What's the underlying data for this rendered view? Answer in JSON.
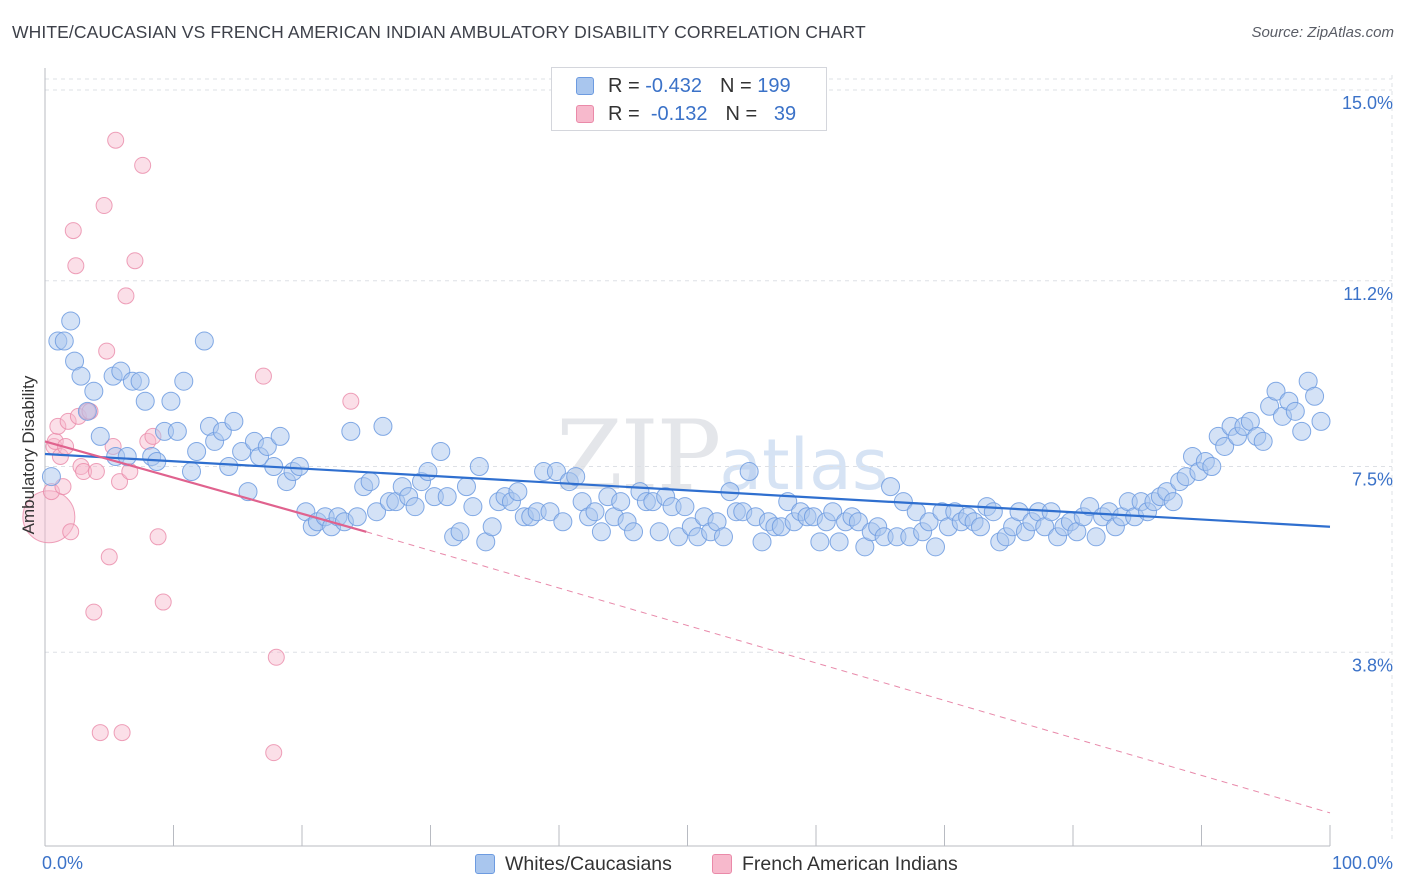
{
  "header": {
    "title": "WHITE/CAUCASIAN VS FRENCH AMERICAN INDIAN AMBULATORY DISABILITY CORRELATION CHART",
    "source": "Source: ZipAtlas.com"
  },
  "watermark": {
    "zip": "ZIP",
    "atlas": "atlas"
  },
  "legend": {
    "rows": [
      {
        "r_label": "R =",
        "r_value": "-0.432",
        "n_label": "N =",
        "n_value": "199"
      },
      {
        "r_label": "R =",
        "r_value": "-0.132",
        "n_label": "N =",
        "n_value": " 39"
      }
    ]
  },
  "colors": {
    "blue_fill": "#a9c6ee",
    "blue_stroke": "#6d9be0",
    "blue_line": "#2f6fcf",
    "pink_fill": "#f7b9cc",
    "pink_stroke": "#ea8aa9",
    "pink_line": "#e0628e",
    "grid": "#dde0e5",
    "tick_label": "#3b72c8"
  },
  "chart_data": {
    "type": "scatter",
    "title": "WHITE/CAUCASIAN VS FRENCH AMERICAN INDIAN AMBULATORY DISABILITY CORRELATION CHART",
    "xlabel": "",
    "ylabel": "Ambulatory Disability",
    "xlim": [
      0,
      100
    ],
    "ylim": [
      0,
      15.3
    ],
    "x_tick_labels": [
      "0.0%",
      "100.0%"
    ],
    "y_ticks": [
      3.8,
      7.5,
      11.2,
      15.0
    ],
    "y_tick_labels": [
      "3.8%",
      "7.5%",
      "11.2%",
      "15.0%"
    ],
    "legend_position": "bottom-center",
    "series": [
      {
        "name": "Whites/Caucasians",
        "color": "blue",
        "r": -0.432,
        "n": 199,
        "trend": {
          "x": [
            0,
            100
          ],
          "y": [
            7.75,
            6.3
          ]
        },
        "points": [
          [
            0.5,
            7.3
          ],
          [
            1.0,
            10.0
          ],
          [
            1.5,
            10.0
          ],
          [
            2.0,
            10.4
          ],
          [
            2.3,
            9.6
          ],
          [
            2.8,
            9.3
          ],
          [
            3.3,
            8.6
          ],
          [
            3.8,
            9.0
          ],
          [
            4.3,
            8.1
          ],
          [
            5.3,
            9.3
          ],
          [
            5.5,
            7.7
          ],
          [
            5.9,
            9.4
          ],
          [
            6.4,
            7.7
          ],
          [
            6.8,
            9.2
          ],
          [
            7.4,
            9.2
          ],
          [
            7.8,
            8.8
          ],
          [
            8.3,
            7.7
          ],
          [
            8.7,
            7.6
          ],
          [
            9.3,
            8.2
          ],
          [
            9.8,
            8.8
          ],
          [
            10.3,
            8.2
          ],
          [
            10.8,
            9.2
          ],
          [
            11.4,
            7.4
          ],
          [
            11.8,
            7.8
          ],
          [
            12.4,
            10.0
          ],
          [
            12.8,
            8.3
          ],
          [
            13.2,
            8.0
          ],
          [
            13.8,
            8.2
          ],
          [
            14.3,
            7.5
          ],
          [
            14.7,
            8.4
          ],
          [
            15.3,
            7.8
          ],
          [
            15.8,
            7.0
          ],
          [
            16.3,
            8.0
          ],
          [
            16.7,
            7.7
          ],
          [
            17.3,
            7.9
          ],
          [
            17.8,
            7.5
          ],
          [
            18.3,
            8.1
          ],
          [
            18.8,
            7.2
          ],
          [
            19.3,
            7.4
          ],
          [
            19.8,
            7.5
          ],
          [
            20.3,
            6.6
          ],
          [
            20.8,
            6.3
          ],
          [
            21.2,
            6.4
          ],
          [
            21.8,
            6.5
          ],
          [
            22.3,
            6.3
          ],
          [
            22.8,
            6.5
          ],
          [
            23.3,
            6.4
          ],
          [
            23.8,
            8.2
          ],
          [
            24.3,
            6.5
          ],
          [
            24.8,
            7.1
          ],
          [
            25.3,
            7.2
          ],
          [
            25.8,
            6.6
          ],
          [
            26.3,
            8.3
          ],
          [
            26.8,
            6.8
          ],
          [
            27.3,
            6.8
          ],
          [
            27.8,
            7.1
          ],
          [
            28.3,
            6.9
          ],
          [
            28.8,
            6.7
          ],
          [
            29.3,
            7.2
          ],
          [
            29.8,
            7.4
          ],
          [
            30.3,
            6.9
          ],
          [
            30.8,
            7.8
          ],
          [
            31.3,
            6.9
          ],
          [
            31.8,
            6.1
          ],
          [
            32.3,
            6.2
          ],
          [
            32.8,
            7.1
          ],
          [
            33.3,
            6.7
          ],
          [
            33.8,
            7.5
          ],
          [
            34.3,
            6.0
          ],
          [
            34.8,
            6.3
          ],
          [
            35.3,
            6.8
          ],
          [
            35.8,
            6.9
          ],
          [
            36.3,
            6.8
          ],
          [
            36.8,
            7.0
          ],
          [
            37.3,
            6.5
          ],
          [
            37.8,
            6.5
          ],
          [
            38.3,
            6.6
          ],
          [
            38.8,
            7.4
          ],
          [
            39.3,
            6.6
          ],
          [
            39.8,
            7.4
          ],
          [
            40.3,
            6.4
          ],
          [
            40.8,
            7.2
          ],
          [
            41.3,
            7.3
          ],
          [
            41.8,
            6.8
          ],
          [
            42.3,
            6.5
          ],
          [
            42.8,
            6.6
          ],
          [
            43.3,
            6.2
          ],
          [
            43.8,
            6.9
          ],
          [
            44.3,
            6.5
          ],
          [
            44.8,
            6.8
          ],
          [
            45.3,
            6.4
          ],
          [
            45.8,
            6.2
          ],
          [
            46.3,
            7.0
          ],
          [
            46.8,
            6.8
          ],
          [
            47.3,
            6.8
          ],
          [
            47.8,
            6.2
          ],
          [
            48.3,
            6.9
          ],
          [
            48.8,
            6.7
          ],
          [
            49.3,
            6.1
          ],
          [
            49.8,
            6.7
          ],
          [
            50.3,
            6.3
          ],
          [
            50.8,
            6.1
          ],
          [
            51.3,
            6.5
          ],
          [
            51.8,
            6.2
          ],
          [
            52.3,
            6.4
          ],
          [
            52.8,
            6.1
          ],
          [
            53.3,
            7.0
          ],
          [
            53.8,
            6.6
          ],
          [
            54.3,
            6.6
          ],
          [
            54.8,
            7.4
          ],
          [
            55.3,
            6.5
          ],
          [
            55.8,
            6.0
          ],
          [
            56.3,
            6.4
          ],
          [
            56.8,
            6.3
          ],
          [
            57.3,
            6.3
          ],
          [
            57.8,
            6.8
          ],
          [
            58.3,
            6.4
          ],
          [
            58.8,
            6.6
          ],
          [
            59.3,
            6.5
          ],
          [
            59.8,
            6.5
          ],
          [
            60.3,
            6.0
          ],
          [
            60.8,
            6.4
          ],
          [
            61.3,
            6.6
          ],
          [
            61.8,
            6.0
          ],
          [
            62.3,
            6.4
          ],
          [
            62.8,
            6.5
          ],
          [
            63.3,
            6.4
          ],
          [
            63.8,
            5.9
          ],
          [
            64.3,
            6.2
          ],
          [
            64.8,
            6.3
          ],
          [
            65.3,
            6.1
          ],
          [
            65.8,
            7.1
          ],
          [
            66.3,
            6.1
          ],
          [
            66.8,
            6.8
          ],
          [
            67.3,
            6.1
          ],
          [
            67.8,
            6.6
          ],
          [
            68.3,
            6.2
          ],
          [
            68.8,
            6.4
          ],
          [
            69.3,
            5.9
          ],
          [
            69.8,
            6.6
          ],
          [
            70.3,
            6.3
          ],
          [
            70.8,
            6.6
          ],
          [
            71.3,
            6.4
          ],
          [
            71.8,
            6.5
          ],
          [
            72.3,
            6.4
          ],
          [
            72.8,
            6.3
          ],
          [
            73.3,
            6.7
          ],
          [
            73.8,
            6.6
          ],
          [
            74.3,
            6.0
          ],
          [
            74.8,
            6.1
          ],
          [
            75.3,
            6.3
          ],
          [
            75.8,
            6.6
          ],
          [
            76.3,
            6.2
          ],
          [
            76.8,
            6.4
          ],
          [
            77.3,
            6.6
          ],
          [
            77.8,
            6.3
          ],
          [
            78.3,
            6.6
          ],
          [
            78.8,
            6.1
          ],
          [
            79.3,
            6.3
          ],
          [
            79.8,
            6.4
          ],
          [
            80.3,
            6.2
          ],
          [
            80.8,
            6.5
          ],
          [
            81.3,
            6.7
          ],
          [
            81.8,
            6.1
          ],
          [
            82.3,
            6.5
          ],
          [
            82.8,
            6.6
          ],
          [
            83.3,
            6.3
          ],
          [
            83.8,
            6.5
          ],
          [
            84.3,
            6.8
          ],
          [
            84.8,
            6.5
          ],
          [
            85.3,
            6.8
          ],
          [
            85.8,
            6.6
          ],
          [
            86.3,
            6.8
          ],
          [
            86.8,
            6.9
          ],
          [
            87.3,
            7.0
          ],
          [
            87.8,
            6.8
          ],
          [
            88.3,
            7.2
          ],
          [
            88.8,
            7.3
          ],
          [
            89.3,
            7.7
          ],
          [
            89.8,
            7.4
          ],
          [
            90.3,
            7.6
          ],
          [
            90.8,
            7.5
          ],
          [
            91.3,
            8.1
          ],
          [
            91.8,
            7.9
          ],
          [
            92.3,
            8.3
          ],
          [
            92.8,
            8.1
          ],
          [
            93.3,
            8.3
          ],
          [
            93.8,
            8.4
          ],
          [
            94.3,
            8.1
          ],
          [
            94.8,
            8.0
          ],
          [
            95.3,
            8.7
          ],
          [
            95.8,
            9.0
          ],
          [
            96.3,
            8.5
          ],
          [
            96.8,
            8.8
          ],
          [
            97.3,
            8.6
          ],
          [
            97.8,
            8.2
          ],
          [
            98.3,
            9.2
          ],
          [
            98.8,
            8.9
          ],
          [
            99.3,
            8.4
          ]
        ]
      },
      {
        "name": "French American Indians",
        "color": "pink",
        "r": -0.132,
        "n": 39,
        "trend": {
          "x": [
            0,
            25
          ],
          "y": [
            8.0,
            6.2
          ]
        },
        "trend_extended": {
          "x": [
            25,
            100
          ],
          "y": [
            6.2,
            0.6
          ]
        },
        "points": [
          [
            0.3,
            6.5
          ],
          [
            0.5,
            7.0
          ],
          [
            0.7,
            7.9
          ],
          [
            0.8,
            8.0
          ],
          [
            1.0,
            8.3
          ],
          [
            1.2,
            7.7
          ],
          [
            1.4,
            7.1
          ],
          [
            1.6,
            7.9
          ],
          [
            1.8,
            8.4
          ],
          [
            2.0,
            6.2
          ],
          [
            2.2,
            12.2
          ],
          [
            2.4,
            11.5
          ],
          [
            2.6,
            8.5
          ],
          [
            2.8,
            7.5
          ],
          [
            3.0,
            7.4
          ],
          [
            3.3,
            8.6
          ],
          [
            3.5,
            8.6
          ],
          [
            3.8,
            4.6
          ],
          [
            4.0,
            7.4
          ],
          [
            4.3,
            2.2
          ],
          [
            4.6,
            12.7
          ],
          [
            4.8,
            9.8
          ],
          [
            5.0,
            5.7
          ],
          [
            5.3,
            7.9
          ],
          [
            5.5,
            14.0
          ],
          [
            5.8,
            7.2
          ],
          [
            6.0,
            2.2
          ],
          [
            6.3,
            10.9
          ],
          [
            6.6,
            7.4
          ],
          [
            7.0,
            11.6
          ],
          [
            7.6,
            13.5
          ],
          [
            8.0,
            8.0
          ],
          [
            8.4,
            8.1
          ],
          [
            8.8,
            6.1
          ],
          [
            9.2,
            4.8
          ],
          [
            17.0,
            9.3
          ],
          [
            17.8,
            1.8
          ],
          [
            18.0,
            3.7
          ],
          [
            23.8,
            8.8
          ]
        ]
      }
    ]
  }
}
